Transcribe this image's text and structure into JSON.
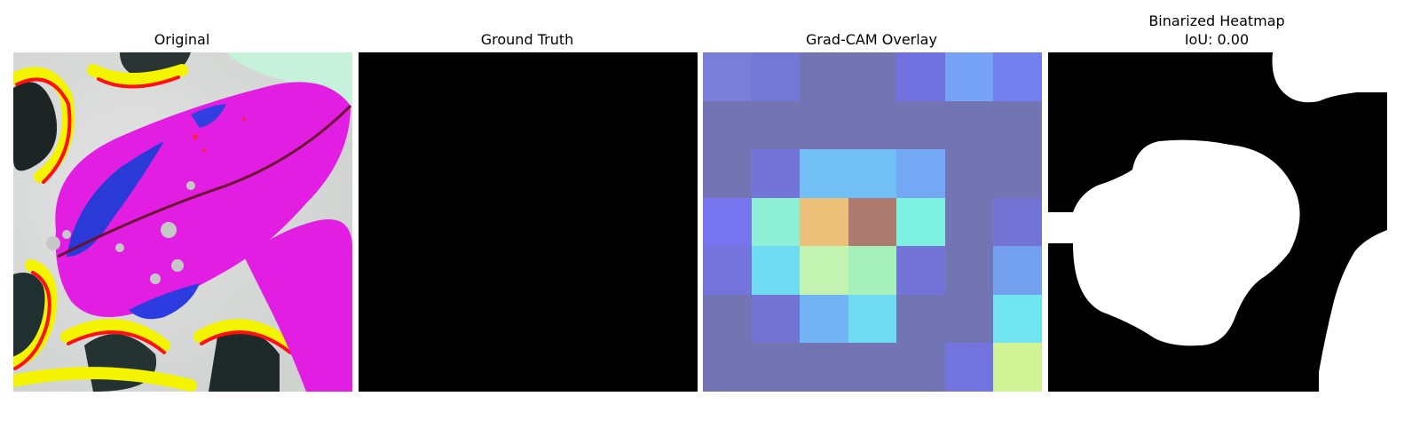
{
  "panels": [
    {
      "title": "Original"
    },
    {
      "title": "Ground Truth"
    },
    {
      "title": "Grad-CAM Overlay"
    },
    {
      "title": "Binarized Heatmap",
      "subtitle": "IoU: 0.00"
    }
  ],
  "gradcam": {
    "colors": [
      [
        "#7b7ed8",
        "#7478d5",
        "#7374b4",
        "#7374b4",
        "#7171e0",
        "#76a2f5",
        "#7380f0"
      ],
      [
        "#7374b4",
        "#7374b4",
        "#7374b4",
        "#7374b4",
        "#7374b4",
        "#7374b4",
        "#7374b4"
      ],
      [
        "#7374b4",
        "#7373d8",
        "#72bff5",
        "#72bff5",
        "#74a8f4",
        "#7374b4",
        "#7374b4"
      ],
      [
        "#7776f0",
        "#8df0d4",
        "#edc07a",
        "#ad7a70",
        "#7df1e0",
        "#7374b4",
        "#7374d6"
      ],
      [
        "#7474dc",
        "#70dcf4",
        "#c3f3b0",
        "#a6f1bb",
        "#7373d8",
        "#7374b4",
        "#74a0f0"
      ],
      [
        "#7374b4",
        "#7373d4",
        "#72b4f4",
        "#70dcf4",
        "#7374b4",
        "#7374b4",
        "#70e4f0"
      ],
      [
        "#7374b4",
        "#7374b4",
        "#7374b4",
        "#7374b4",
        "#7374b4",
        "#7374e0",
        "#d0f495"
      ]
    ]
  }
}
